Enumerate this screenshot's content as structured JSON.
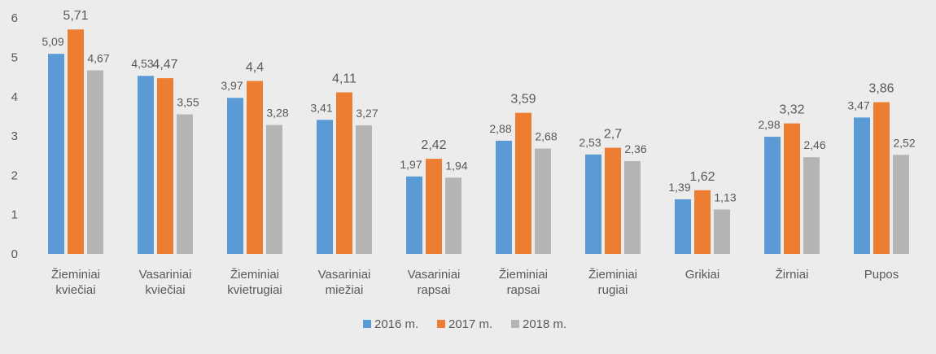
{
  "chart_data": {
    "type": "bar",
    "title": "",
    "xlabel": "",
    "ylabel": "",
    "ylim": [
      0,
      6
    ],
    "yticks": [
      "0",
      "1",
      "2",
      "3",
      "4",
      "5",
      "6"
    ],
    "grid": false,
    "legend_position": "bottom",
    "categories": [
      [
        "Žieminiai",
        "kviečiai"
      ],
      [
        "Vasariniai",
        "kviečiai"
      ],
      [
        "Žieminiai",
        "kvietrugiai"
      ],
      [
        "Vasariniai",
        "miežiai"
      ],
      [
        "Vasariniai",
        "rapsai"
      ],
      [
        "Žieminiai",
        "rapsai"
      ],
      [
        "Žieminiai",
        "rugiai"
      ],
      [
        "Grikiai"
      ],
      [
        "Žirniai"
      ],
      [
        "Pupos"
      ]
    ],
    "series": [
      {
        "name": "2016 m.",
        "color": "#5b9bd5",
        "values": [
          5.09,
          4.53,
          3.97,
          3.41,
          1.97,
          2.88,
          2.53,
          1.39,
          2.98,
          3.47
        ],
        "labels": [
          "5,09",
          "4,53",
          "3,97",
          "3,41",
          "1,97",
          "2,88",
          "2,53",
          "1,39",
          "2,98",
          "3,47"
        ]
      },
      {
        "name": "2017 m.",
        "color": "#ed7d31",
        "values": [
          5.71,
          4.47,
          4.4,
          4.11,
          2.42,
          3.59,
          2.7,
          1.62,
          3.32,
          3.86
        ],
        "labels": [
          "5,71",
          "4,47",
          "4,4",
          "4,11",
          "2,42",
          "3,59",
          "2,7",
          "1,62",
          "3,32",
          "3,86"
        ]
      },
      {
        "name": "2018 m.",
        "color": "#b4b4b4",
        "values": [
          4.67,
          3.55,
          3.28,
          3.27,
          1.94,
          2.68,
          2.36,
          1.13,
          2.46,
          2.52
        ],
        "labels": [
          "4,67",
          "3,55",
          "3,28",
          "3,27",
          "1,94",
          "2,68",
          "2,36",
          "1,13",
          "2,46",
          "2,52"
        ]
      }
    ]
  }
}
